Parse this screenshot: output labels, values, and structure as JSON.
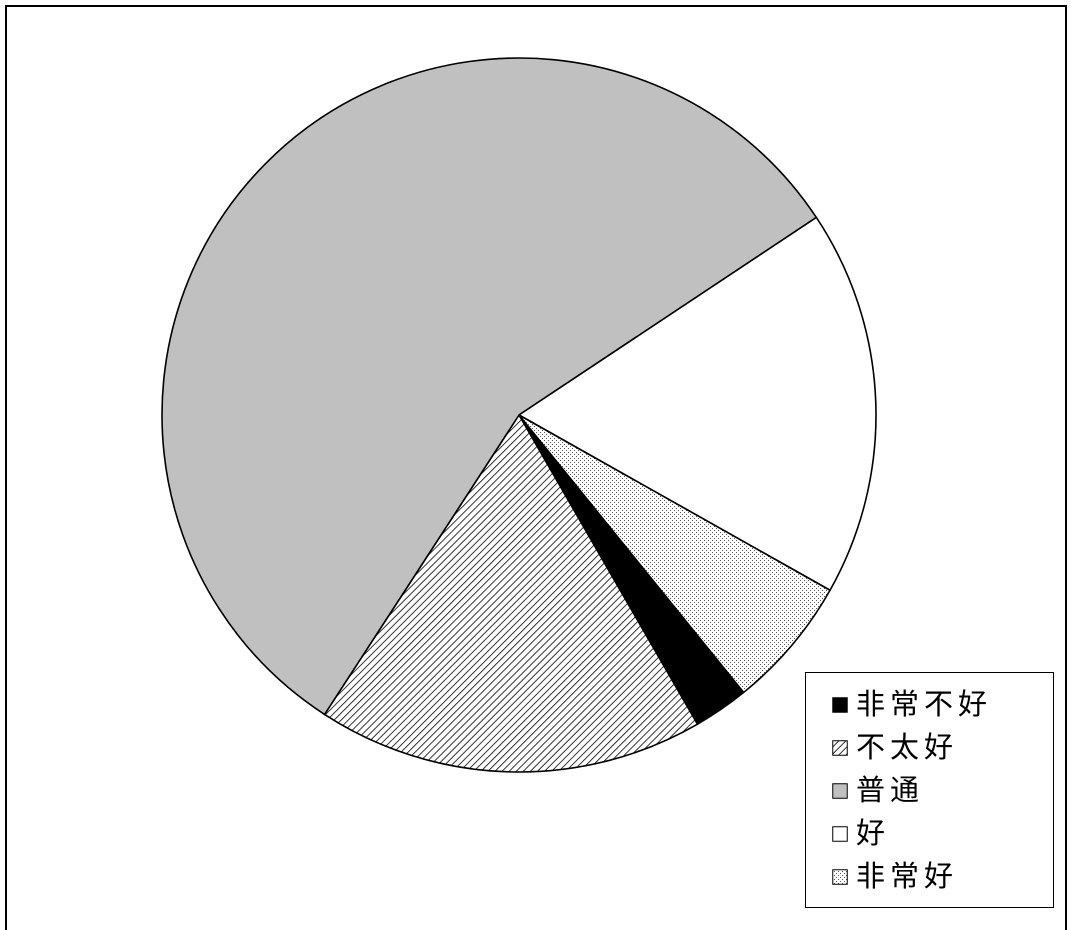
{
  "chart_data": {
    "type": "pie",
    "slices": [
      {
        "label": "非常不好",
        "value": 2.5,
        "fill": "#000000"
      },
      {
        "label": "不太好",
        "value": 17.5,
        "fill": "diagonal-hatch"
      },
      {
        "label": "普通",
        "value": 56.5,
        "fill": "#c0c0c0"
      },
      {
        "label": "好",
        "value": 17.5,
        "fill": "#ffffff"
      },
      {
        "label": "非常好",
        "value": 6.0,
        "fill": "light-dots"
      }
    ],
    "legend_position": "bottom-right"
  }
}
